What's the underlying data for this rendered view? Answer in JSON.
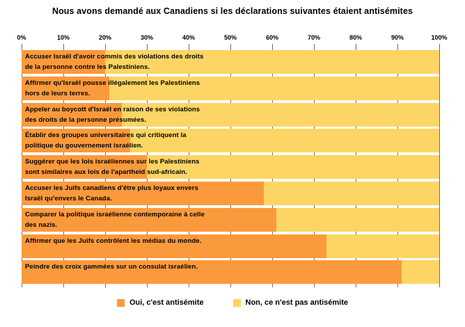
{
  "title": "Nous avons demandé aux Canadiens si les déclarations suivantes étaient antisémites",
  "colors": {
    "oui": "#fb9a3c",
    "non": "#fdd564",
    "gridline": "#6e6e6e",
    "background": "#ffffff",
    "text": "#000000"
  },
  "axis": {
    "ticks": [
      "0%",
      "10%",
      "20%",
      "30%",
      "40%",
      "50%",
      "60%",
      "70%",
      "80%",
      "90%",
      "100%"
    ],
    "min": 0,
    "max": 100
  },
  "legend": [
    {
      "label": "Oui, c'est antisémite",
      "color_key": "oui"
    },
    {
      "label": "Non, ce n'est pas antisémite",
      "color_key": "non"
    }
  ],
  "chart_data": {
    "type": "bar",
    "orientation": "horizontal",
    "stacked": true,
    "percent_total": 100,
    "title": "Nous avons demandé aux Canadiens si les déclarations suivantes étaient antisémites",
    "xlabel": "",
    "ylabel": "",
    "xlim": [
      0,
      100
    ],
    "grid": true,
    "legend_position": "bottom",
    "categories": [
      "Accuser Israël d'avoir commis des violations des droits\nde la personne contre les Palestiniens.",
      "Affirmer qu'Israël pousse illégalement les Palestiniens\nhors de leurs terres.",
      "Appeler au boycott d'Israël en raison de ses violations\ndes droits de la personne présumées.",
      "Établir des groupes universitaires qui critiquent la\npolitique du gouvernement israélien.",
      "Suggérer que les lois israéliennes sur les Palestiniens\nsont similaires aux lois de l'apartheid sud-africain.",
      "Accuser les Juifs canadiens d'être plus loyaux envers\nIsraël qu'envers le Canada.",
      "Comparer la politique israélienne contemporaine à celle\ndes nazis.",
      "Affirmer que les Juifs contrôlent les médias du monde.",
      "Peindre des croix gammées sur un consulat israélien."
    ],
    "series": [
      {
        "name": "Oui, c'est antisémite",
        "values": [
          20,
          21,
          24,
          26,
          30,
          58,
          61,
          73,
          91
        ]
      },
      {
        "name": "Non, ce n'est pas antisémite",
        "values": [
          80,
          79,
          76,
          74,
          70,
          42,
          39,
          27,
          9
        ]
      }
    ]
  }
}
